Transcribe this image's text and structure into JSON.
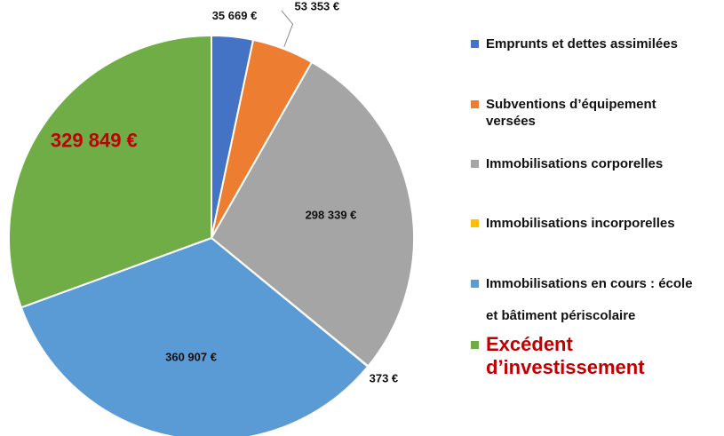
{
  "chart_data": {
    "type": "pie",
    "categories": [
      "Emprunts et dettes assimilées",
      "Subventions d’équipement versées",
      "Immobilisations corporelles",
      "Immobilisations incorporelles",
      "Immobilisations en cours : école et bâtiment périscolaire",
      "Excédent d’investissement"
    ],
    "values": [
      35669,
      53353,
      298339,
      373,
      360907,
      329849
    ],
    "value_labels": [
      "35 669 €",
      "53 353 €",
      "298 339 €",
      "373 €",
      "360 907 €",
      "329 849 €"
    ],
    "colors": [
      "#4472c4",
      "#ed7d31",
      "#a5a5a5",
      "#ffc000",
      "#5b9bd5",
      "#70ad47"
    ]
  }
}
